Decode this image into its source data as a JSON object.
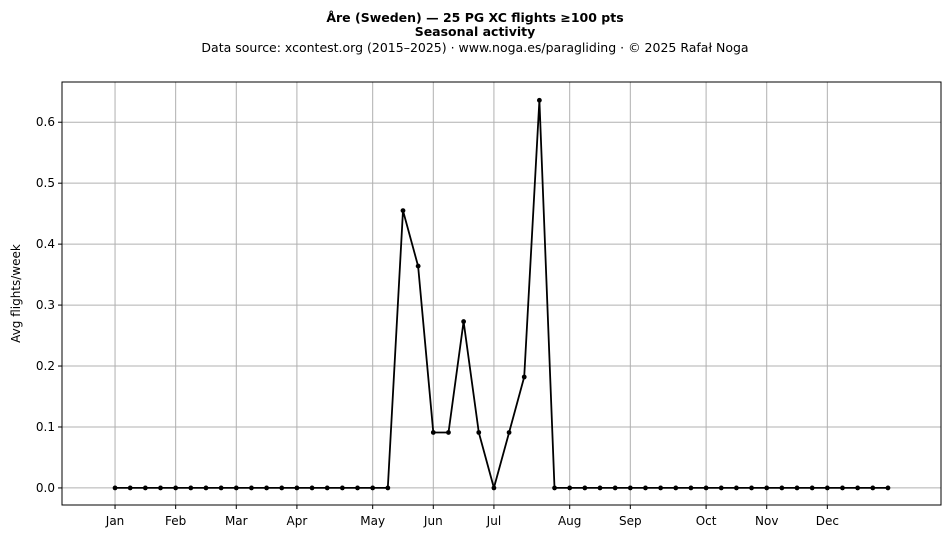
{
  "chart_data": {
    "type": "line",
    "title": "Åre (Sweden)  —  25 PG XC flights ≥100 pts",
    "subtitle": "Seasonal activity",
    "source_note": "Data source: xcontest.org (2015–2025)  ·  www.noga.es/paragliding  ·  © 2025 Rafał Noga",
    "xlabel": "",
    "ylabel": "Avg flights/week",
    "ylim": [
      -0.028,
      0.666
    ],
    "xlim": [
      -2.5,
      55.5
    ],
    "grid": true,
    "line_color": "#000000",
    "x_ticks": [
      {
        "label": "Jan",
        "week": 1
      },
      {
        "label": "Feb",
        "week": 5
      },
      {
        "label": "Mar",
        "week": 9
      },
      {
        "label": "Apr",
        "week": 13
      },
      {
        "label": "May",
        "week": 18
      },
      {
        "label": "Jun",
        "week": 22
      },
      {
        "label": "Jul",
        "week": 26
      },
      {
        "label": "Aug",
        "week": 31
      },
      {
        "label": "Sep",
        "week": 35
      },
      {
        "label": "Oct",
        "week": 40
      },
      {
        "label": "Nov",
        "week": 44
      },
      {
        "label": "Dec",
        "week": 48
      }
    ],
    "y_ticks": [
      {
        "label": "0.0",
        "value": 0.0
      },
      {
        "label": "0.1",
        "value": 0.1
      },
      {
        "label": "0.2",
        "value": 0.2
      },
      {
        "label": "0.3",
        "value": 0.3
      },
      {
        "label": "0.4",
        "value": 0.4
      },
      {
        "label": "0.5",
        "value": 0.5
      },
      {
        "label": "0.6",
        "value": 0.6
      }
    ],
    "x": [
      1,
      2,
      3,
      4,
      5,
      6,
      7,
      8,
      9,
      10,
      11,
      12,
      13,
      14,
      15,
      16,
      17,
      18,
      19,
      20,
      21,
      22,
      23,
      24,
      25,
      26,
      27,
      28,
      29,
      30,
      31,
      32,
      33,
      34,
      35,
      36,
      37,
      38,
      39,
      40,
      41,
      42,
      43,
      44,
      45,
      46,
      47,
      48,
      49,
      50,
      51,
      52
    ],
    "values": [
      0,
      0,
      0,
      0,
      0,
      0,
      0,
      0,
      0,
      0,
      0,
      0,
      0,
      0,
      0,
      0,
      0,
      0,
      0,
      0.455,
      0.364,
      0.091,
      0.091,
      0.273,
      0.091,
      0,
      0.091,
      0.182,
      0.636,
      0,
      0,
      0,
      0,
      0,
      0,
      0,
      0,
      0,
      0,
      0,
      0,
      0,
      0,
      0,
      0,
      0,
      0,
      0,
      0,
      0,
      0,
      0
    ]
  }
}
